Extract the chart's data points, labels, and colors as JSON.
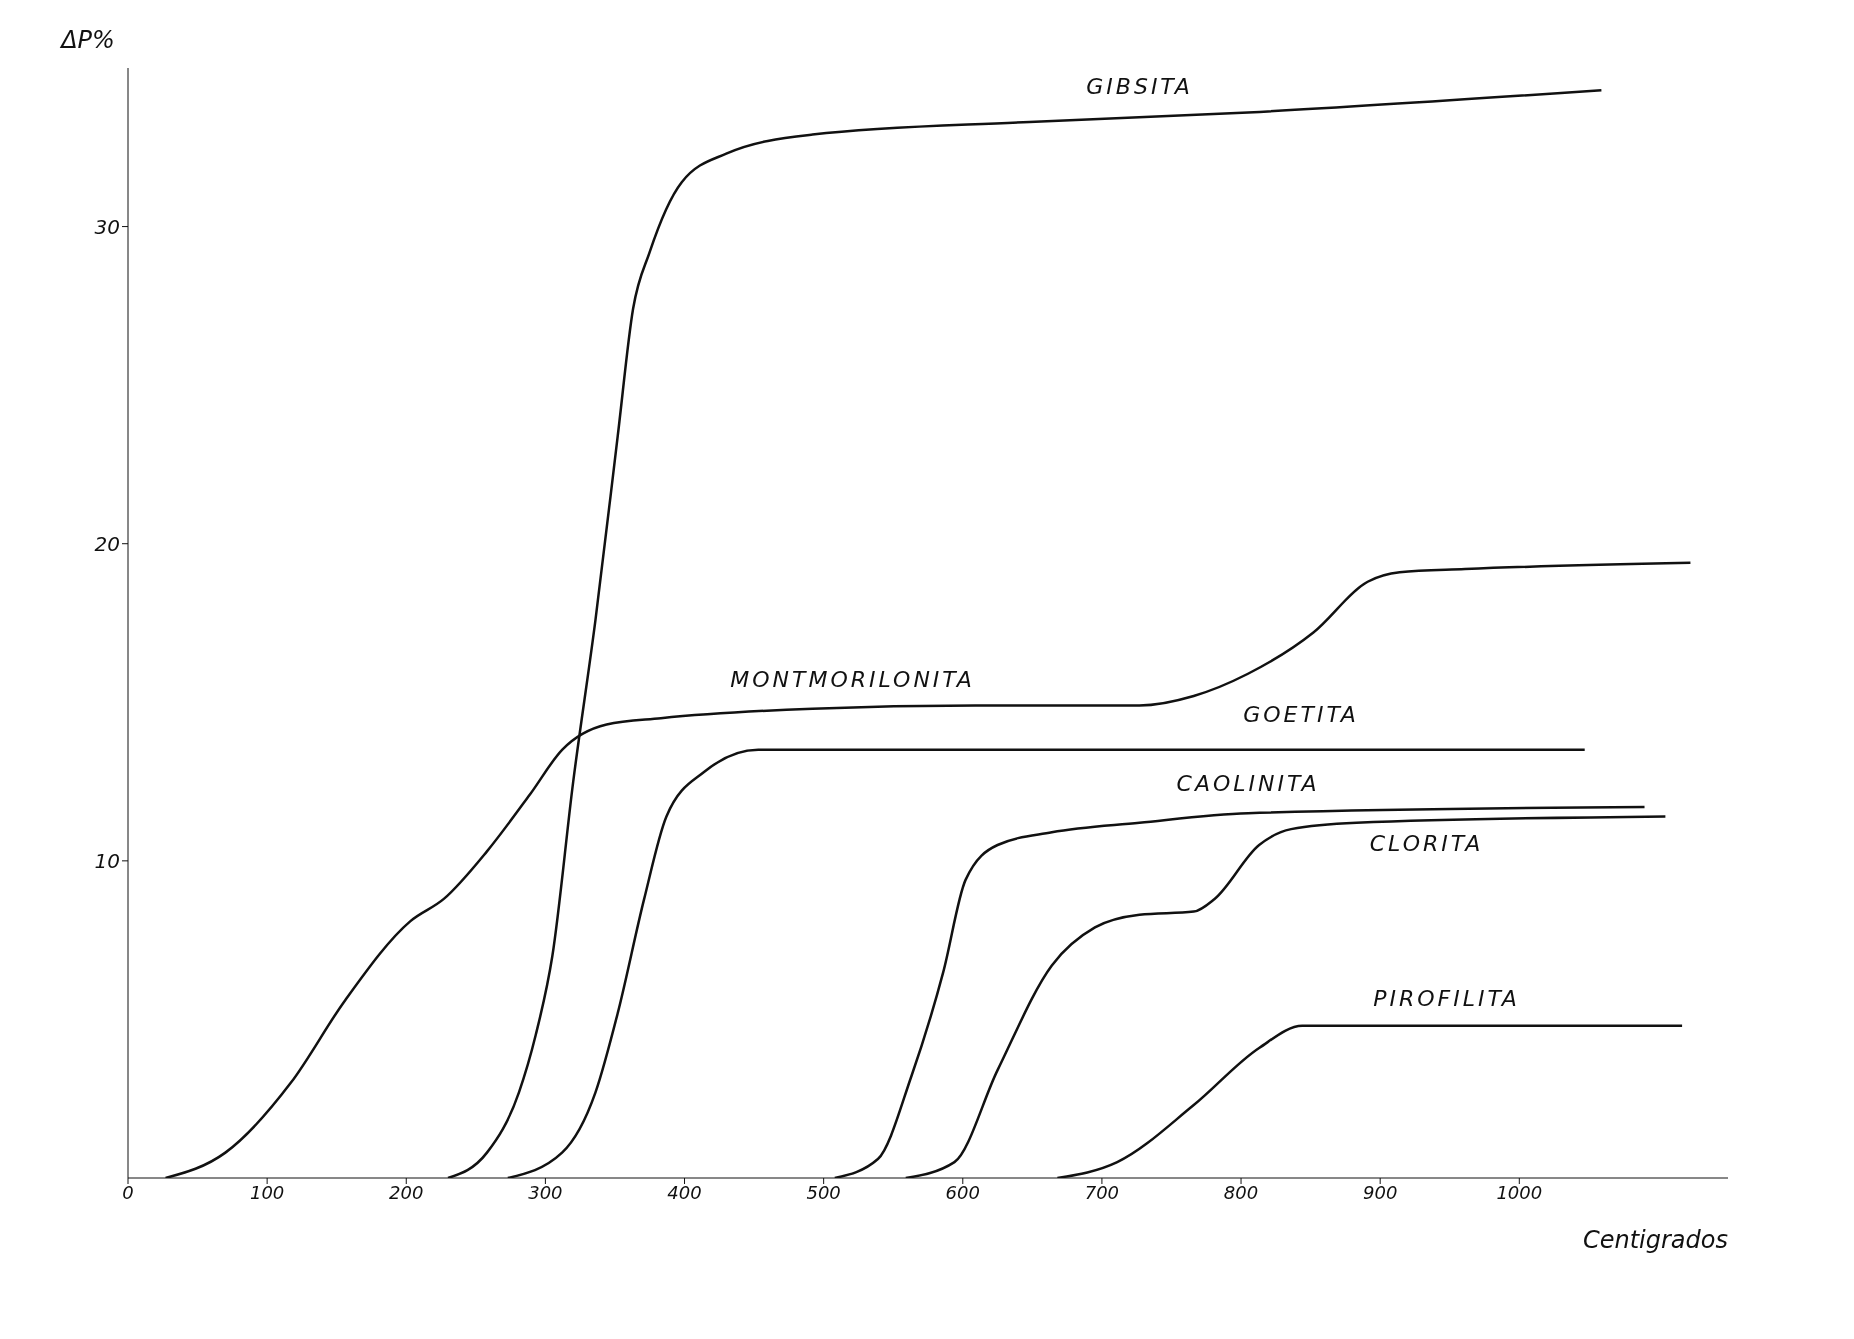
{
  "chart_data": {
    "type": "line",
    "xlabel": "Centigrados",
    "ylabel": "ΔP%",
    "xlim": [
      0,
      1150
    ],
    "ylim": [
      0,
      35
    ],
    "xticks": [
      0,
      100,
      200,
      300,
      400,
      500,
      600,
      700,
      800,
      900,
      1000
    ],
    "yticks": [
      10,
      20,
      30
    ],
    "grid": false,
    "legend": false,
    "marker": "none",
    "line_style": "solid",
    "series": [
      {
        "name": "MONTMORILONITA",
        "color": "#111111",
        "x": [
          27,
          70,
          117,
          156,
          203,
          227,
          258,
          289,
          312,
          344,
          383,
          492,
          609,
          727,
          766,
          805,
          852,
          891,
          914,
          961,
          1123
        ],
        "values": [
          0,
          0.8,
          3,
          5.6,
          8.1,
          8.8,
          10.3,
          12.1,
          13.5,
          14.3,
          14.5,
          14.8,
          14.9,
          14.9,
          15.2,
          15.9,
          17.2,
          18.8,
          19.1,
          19.2,
          19.4
        ]
      },
      {
        "name": "GIBSITA",
        "color": "#111111",
        "x": [
          230,
          258,
          281,
          293,
          305,
          320,
          336,
          352,
          363,
          375,
          398,
          430,
          492,
          648,
          805,
          1059
        ],
        "values": [
          0,
          0.8,
          2.7,
          4.5,
          7,
          12.5,
          17.6,
          23.4,
          27.4,
          29.2,
          31.4,
          32.3,
          32.9,
          33.3,
          33.6,
          34.3
        ]
      },
      {
        "name": "GOETITA",
        "color": "#111111",
        "x": [
          273,
          312,
          336,
          352,
          371,
          387,
          414,
          453,
          570,
          1047
        ],
        "values": [
          0,
          0.8,
          2.7,
          5.2,
          8.8,
          11.4,
          12.8,
          13.5,
          13.5,
          13.5
        ]
      },
      {
        "name": "CAOLINITA",
        "color": "#111111",
        "x": [
          508,
          539,
          563,
          586,
          602,
          625,
          664,
          727,
          805,
          1090
        ],
        "values": [
          0,
          0.6,
          3.2,
          6.5,
          9.4,
          10.5,
          10.9,
          11.2,
          11.5,
          11.7
        ]
      },
      {
        "name": "CLORITA",
        "color": "#111111",
        "x": [
          559,
          594,
          625,
          664,
          695,
          727,
          766,
          781,
          813,
          836,
          883,
          1105
        ],
        "values": [
          0,
          0.5,
          3.4,
          6.7,
          7.9,
          8.3,
          8.4,
          8.8,
          10.5,
          11,
          11.2,
          11.4
        ]
      },
      {
        "name": "PIROFILITA",
        "color": "#111111",
        "x": [
          668,
          711,
          766,
          813,
          844,
          883,
          1117
        ],
        "values": [
          0,
          0.5,
          2.3,
          4.1,
          4.8,
          4.8,
          4.8
        ]
      }
    ]
  }
}
